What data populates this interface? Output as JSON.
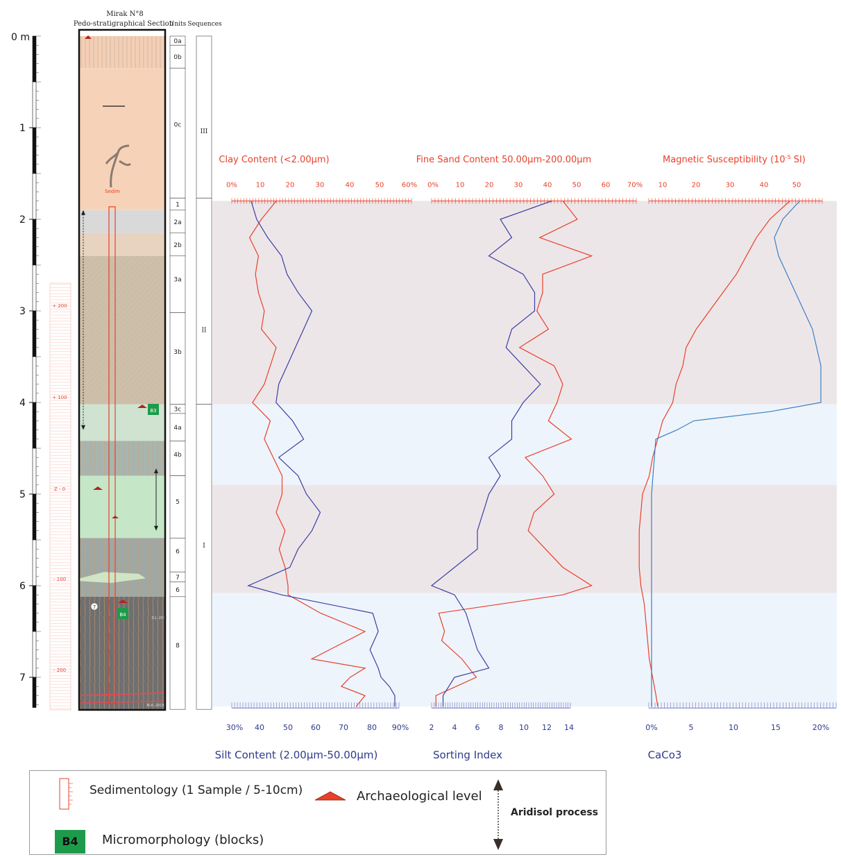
{
  "header": {
    "section_title_line1": "Mirak N°8",
    "section_title_line2": "Pedo-stratigraphical Section",
    "units_label": "Units",
    "sequences_label": "Sequences"
  },
  "depth_scale": {
    "unit_label": "0 m",
    "ticks": [
      "1",
      "2",
      "3",
      "4",
      "5",
      "6",
      "7"
    ]
  },
  "relative_scale": {
    "labels": [
      "+ 200",
      "+ 100",
      "Z - 0",
      "- 100",
      "- 200"
    ]
  },
  "units": [
    {
      "label": "0a",
      "top": 0.0,
      "bottom": 0.1
    },
    {
      "label": "0b",
      "top": 0.1,
      "bottom": 0.35
    },
    {
      "label": "0c",
      "top": 0.35,
      "bottom": 1.77
    },
    {
      "label": "1",
      "top": 1.77,
      "bottom": 1.9
    },
    {
      "label": "2a",
      "top": 1.9,
      "bottom": 2.15
    },
    {
      "label": "2b",
      "top": 2.15,
      "bottom": 2.4
    },
    {
      "label": "3a",
      "top": 2.4,
      "bottom": 3.02
    },
    {
      "label": "3b",
      "top": 3.02,
      "bottom": 4.02
    },
    {
      "label": "3c",
      "top": 4.02,
      "bottom": 4.12
    },
    {
      "label": "4a",
      "top": 4.12,
      "bottom": 4.42
    },
    {
      "label": "4b",
      "top": 4.42,
      "bottom": 4.8
    },
    {
      "label": "5",
      "top": 4.8,
      "bottom": 5.48
    },
    {
      "label": "6",
      "top": 5.48,
      "bottom": 5.85
    },
    {
      "label": "7",
      "top": 5.85,
      "bottom": 5.96
    },
    {
      "label": "6",
      "top": 5.96,
      "bottom": 6.12
    },
    {
      "label": "8",
      "top": 6.12,
      "bottom": 7.35
    }
  ],
  "sequences": [
    {
      "label": "III",
      "top": 0.0,
      "bottom": 1.77
    },
    {
      "label": "II",
      "top": 1.77,
      "bottom": 4.02
    },
    {
      "label": "I",
      "top": 4.02,
      "bottom": 7.35
    }
  ],
  "section_labels": {
    "sample_note": "Sedim",
    "block_b3": "B3",
    "block_b4": "B4",
    "marker_7": "7",
    "stamp_1": "O.J.-2017",
    "stamp_2": "M.A.-2018"
  },
  "chart_data": {
    "type": "line",
    "depth_unit": "m",
    "depth_range": [
      0,
      7.35
    ],
    "shaded_bands": [
      {
        "top": 1.8,
        "bottom": 4.02,
        "color": "#ede6e9"
      },
      {
        "top": 4.02,
        "bottom": 4.9,
        "color": "#eef4fb"
      },
      {
        "top": 4.9,
        "bottom": 6.08,
        "color": "#ede6e9"
      },
      {
        "top": 6.08,
        "bottom": 7.32,
        "color": "#eef4fb"
      }
    ],
    "panels": [
      {
        "top_axis": {
          "label": "Clay Content (<2.00µm)",
          "ticks": [
            "0%",
            "10",
            "20",
            "30",
            "40",
            "50",
            "60%"
          ],
          "range": [
            0,
            60
          ]
        },
        "bottom_axis": {
          "label": "Silt Content (2.00µm-50.00µm)",
          "ticks": [
            "30%",
            "40",
            "50",
            "60",
            "70",
            "80",
            "90%"
          ],
          "range": [
            30,
            90
          ]
        },
        "series": [
          {
            "color": "#e8402a",
            "axis": "top",
            "depth": [
              1.8,
              2.0,
              2.2,
              2.4,
              2.6,
              2.8,
              3.0,
              3.2,
              3.4,
              3.6,
              3.8,
              4.0,
              4.2,
              4.4,
              4.6,
              4.8,
              5.0,
              5.2,
              5.4,
              5.6,
              5.8,
              6.0,
              6.1,
              6.3,
              6.5,
              6.7,
              6.8,
              6.9,
              7.0,
              7.1,
              7.2,
              7.32
            ],
            "values": [
              15,
              10,
              6,
              9,
              8,
              9,
              11,
              10,
              15,
              13,
              11,
              7,
              13,
              11,
              14,
              17,
              17,
              15,
              18,
              16,
              18,
              19,
              19,
              30,
              45,
              33,
              27,
              45,
              40,
              37,
              45,
              42
            ]
          },
          {
            "color": "#3a3fa0",
            "axis": "bottom",
            "depth": [
              1.8,
              2.0,
              2.2,
              2.4,
              2.6,
              2.8,
              3.0,
              3.2,
              3.4,
              3.6,
              3.8,
              4.0,
              4.2,
              4.4,
              4.6,
              4.8,
              5.0,
              5.2,
              5.4,
              5.6,
              5.8,
              6.0,
              6.1,
              6.3,
              6.5,
              6.7,
              6.9,
              7.0,
              7.1,
              7.2,
              7.32
            ],
            "values": [
              36,
              38,
              42,
              47,
              49,
              53,
              58,
              55,
              52,
              49,
              46,
              45,
              51,
              55,
              46,
              53,
              56,
              61,
              58,
              53,
              50,
              35,
              47,
              80,
              82,
              79,
              82,
              83,
              86,
              88,
              88
            ]
          }
        ]
      },
      {
        "top_axis": {
          "label": "Fine Sand Content 50.00µm-200.00µm",
          "ticks": [
            "0%",
            "10",
            "20",
            "30",
            "40",
            "50",
            "60",
            "70%"
          ],
          "range": [
            0,
            70
          ]
        },
        "bottom_axis": {
          "label": "Sorting Index",
          "ticks": [
            "2",
            "4",
            "6",
            "8",
            "10",
            "12",
            "14"
          ],
          "range": [
            2,
            14
          ]
        },
        "series": [
          {
            "color": "#e8402a",
            "axis": "top",
            "depth": [
              1.8,
              2.0,
              2.2,
              2.4,
              2.6,
              2.8,
              3.0,
              3.2,
              3.4,
              3.6,
              3.8,
              4.0,
              4.2,
              4.4,
              4.6,
              4.8,
              5.0,
              5.2,
              5.4,
              5.6,
              5.8,
              6.0,
              6.1,
              6.3,
              6.5,
              6.6,
              6.8,
              7.0,
              7.2,
              7.32
            ],
            "values": [
              45,
              50,
              37,
              55,
              38,
              38,
              36,
              40,
              30,
              42,
              45,
              43,
              40,
              48,
              32,
              38,
              42,
              35,
              33,
              39,
              45,
              55,
              45,
              2,
              4,
              3,
              10,
              15,
              1,
              1
            ]
          },
          {
            "color": "#3a3fa0",
            "axis": "bottom",
            "depth": [
              1.8,
              2.0,
              2.2,
              2.4,
              2.6,
              2.8,
              3.0,
              3.2,
              3.4,
              3.6,
              3.8,
              4.0,
              4.2,
              4.4,
              4.6,
              4.8,
              5.0,
              5.2,
              5.4,
              5.6,
              5.8,
              6.0,
              6.1,
              6.3,
              6.5,
              6.7,
              6.9,
              7.0,
              7.1,
              7.2,
              7.32
            ],
            "values": [
              12.5,
              8,
              9,
              7,
              10,
              11,
              11,
              9,
              8.5,
              10,
              11.5,
              10,
              9,
              9,
              7,
              8,
              7,
              6.5,
              6,
              6,
              4,
              2,
              4,
              5,
              5.5,
              6,
              7,
              4,
              3.5,
              3,
              3
            ]
          }
        ]
      },
      {
        "top_axis": {
          "label": "Magnetic Susceptibility (10-5 SI)",
          "ticks": [
            "10",
            "20",
            "30",
            "40",
            "50"
          ],
          "range": [
            5,
            57
          ]
        },
        "bottom_axis": {
          "label": "CaCo3",
          "ticks": [
            "0%",
            "5",
            "10",
            "15",
            "20%"
          ],
          "range": [
            0,
            22
          ]
        },
        "series": [
          {
            "color": "#e8402a",
            "axis": "top",
            "depth": [
              1.8,
              2.0,
              2.2,
              2.4,
              2.6,
              2.8,
              3.0,
              3.2,
              3.4,
              3.6,
              3.8,
              4.0,
              4.2,
              4.4,
              4.6,
              4.8,
              5.0,
              5.2,
              5.4,
              5.6,
              5.8,
              6.0,
              6.2,
              6.4,
              6.6,
              6.8,
              7.0,
              7.2,
              7.32
            ],
            "values": [
              48,
              42,
              38,
              35,
              32,
              28,
              24,
              20,
              17,
              16,
              14,
              13,
              10,
              8.5,
              7,
              6,
              4,
              3.5,
              3,
              3,
              3,
              3.5,
              4.5,
              5,
              5.5,
              6,
              7,
              8,
              8.5
            ]
          },
          {
            "color": "#3a7fc4",
            "axis": "bottom",
            "depth": [
              1.8,
              2.0,
              2.2,
              2.4,
              2.6,
              2.8,
              3.0,
              3.2,
              3.4,
              3.6,
              3.8,
              4.0,
              4.1,
              4.2,
              4.3,
              4.4,
              5.0,
              6.0,
              7.0,
              7.32
            ],
            "values": [
              17.5,
              15.5,
              14.5,
              15,
              16,
              17,
              18,
              19,
              19.5,
              20,
              20,
              20,
              14,
              5,
              3,
              0.5,
              0,
              0,
              0,
              0
            ]
          }
        ]
      }
    ],
    "arrows": [
      {
        "from": 1.9,
        "to": 4.3,
        "type": "aridisol"
      },
      {
        "from": 4.72,
        "to": 5.4,
        "type": "aridisol"
      }
    ]
  },
  "legend": {
    "sedimentology_label": "Sedimentology (1 Sample /  5-10cm)",
    "archaeological_label": "Archaeological level",
    "aridisol_label": "Aridisol process",
    "block_badge": "B4",
    "micromorphology_label": "Micromorphology (blocks)"
  },
  "colors": {
    "red": "#e8402a",
    "navy": "#3a3fa0",
    "blue": "#3a7fc4",
    "green_badge": "#1d9b4a",
    "pink_band": "#ede6e9",
    "blue_band": "#eef4fb"
  }
}
